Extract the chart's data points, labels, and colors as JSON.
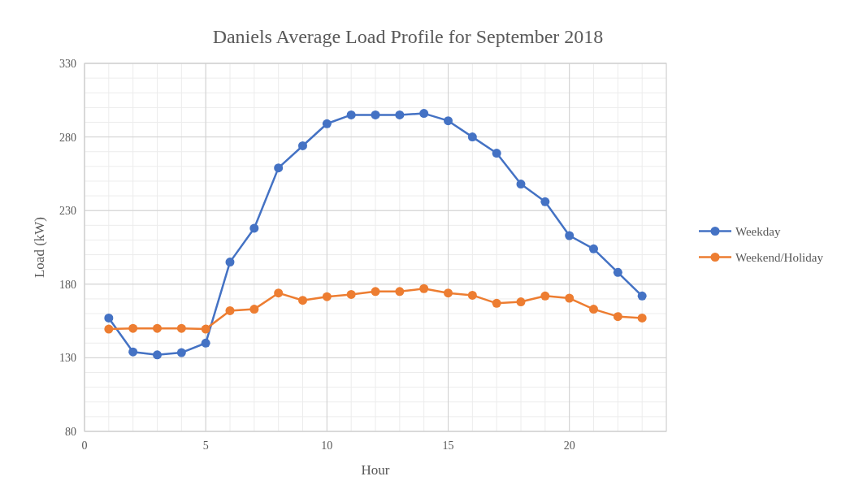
{
  "chart_data": {
    "type": "line",
    "title": "Daniels Average Load Profile for September 2018",
    "xlabel": "Hour",
    "ylabel": "Load (kW)",
    "x": [
      1,
      2,
      3,
      4,
      5,
      6,
      7,
      8,
      9,
      10,
      11,
      12,
      13,
      14,
      15,
      16,
      17,
      18,
      19,
      20,
      21,
      22,
      23
    ],
    "series": [
      {
        "name": "Weekday",
        "color": "#4472c4",
        "values": [
          157,
          134,
          132,
          133.5,
          140,
          195,
          218,
          259,
          274,
          289,
          295,
          295,
          295,
          296,
          291,
          280,
          269,
          248,
          236,
          213,
          204,
          188,
          172
        ]
      },
      {
        "name": "Weekend/Holiday",
        "color": "#ed7d31",
        "values": [
          149.5,
          150,
          150,
          150,
          149.5,
          162,
          163,
          174,
          169,
          171.5,
          173,
          175,
          175,
          177,
          174,
          172.5,
          167,
          168,
          172,
          170.5,
          163,
          158,
          157
        ]
      }
    ],
    "xlim": [
      0,
      24
    ],
    "xticks": [
      0,
      5,
      10,
      15,
      20
    ],
    "ylim": [
      80,
      330
    ],
    "yticks": [
      80,
      130,
      180,
      230,
      280,
      330
    ],
    "grid": true,
    "legend": "right",
    "marker": "circle",
    "line_style": "solid"
  }
}
